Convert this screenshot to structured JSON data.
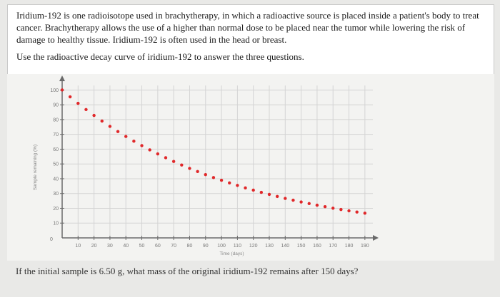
{
  "intro_text": "Iridium-192 is one radioisotope used in brachytherapy, in which a radioactive source is placed inside a patient's body to treat cancer. Brachytherapy allows the use of a higher than normal dose to be placed near the tumor while lowering the risk of damage to healthy tissue. Iridium-192 is often used in the head or breast.",
  "instruction": "Use the radioactive decay curve of iridium-192 to answer the three questions.",
  "question": "If the initial sample is 6.50 g, what mass of the original iridium-192 remains after 150 days?",
  "chart_data": {
    "type": "scatter",
    "title": "",
    "xlabel": "Time (days)",
    "ylabel": "Sample remaining (%)",
    "xlim": [
      0,
      195
    ],
    "ylim": [
      0,
      105
    ],
    "x_ticks": [
      10,
      20,
      30,
      40,
      50,
      60,
      70,
      80,
      90,
      100,
      110,
      120,
      130,
      140,
      150,
      160,
      170,
      180,
      190
    ],
    "y_ticks": [
      10,
      20,
      30,
      40,
      50,
      60,
      70,
      80,
      90,
      100
    ],
    "origin_label": "0",
    "grid": true,
    "point_color": "#e0282a",
    "series": [
      {
        "x": [
          0,
          5,
          10,
          15,
          20,
          25,
          30,
          35,
          40,
          45,
          50,
          55,
          60,
          65,
          70,
          75,
          80,
          85,
          90,
          95,
          100,
          105,
          110,
          115,
          120,
          125,
          130,
          135,
          140,
          145,
          150,
          155,
          160,
          165,
          170,
          175,
          180,
          185,
          190
        ],
        "y": [
          100.0,
          95.4,
          91.0,
          86.8,
          82.8,
          79.0,
          75.4,
          71.9,
          68.6,
          65.4,
          62.4,
          59.5,
          56.8,
          54.2,
          51.7,
          49.3,
          47.0,
          44.9,
          42.8,
          40.8,
          39.0,
          37.2,
          35.5,
          33.8,
          32.3,
          30.8,
          29.4,
          28.0,
          26.7,
          25.5,
          24.3,
          23.2,
          22.1,
          21.1,
          20.1,
          19.2,
          18.3,
          17.5,
          16.7
        ]
      }
    ]
  }
}
